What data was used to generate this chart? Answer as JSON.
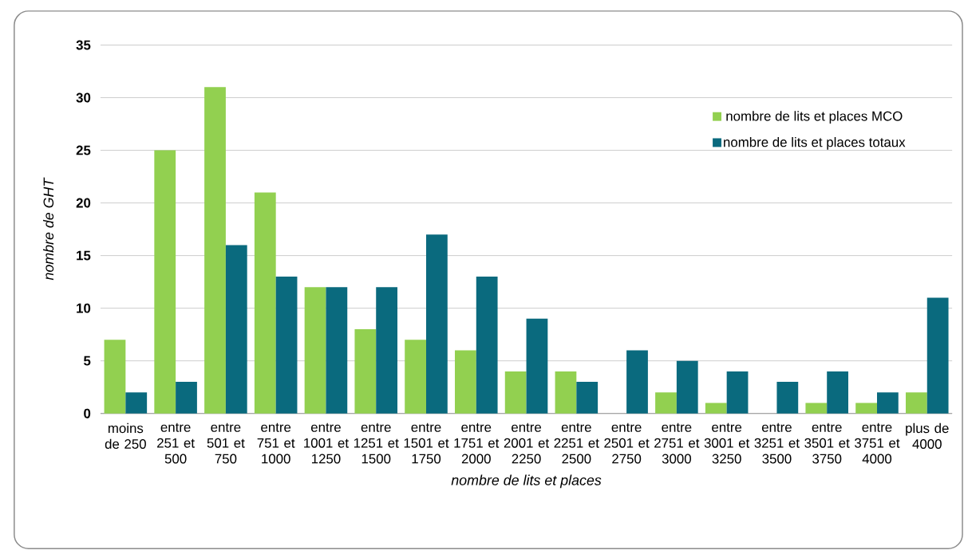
{
  "chart_data": {
    "type": "bar",
    "xlabel": "nombre de lits et places",
    "ylabel": "nombre de GHT",
    "categories": [
      "moins de 250",
      "entre 251 et 500",
      "entre 501 et 750",
      "entre 751 et 1000",
      "entre 1001 et 1250",
      "entre 1251 et 1500",
      "entre 1501 et 1750",
      "entre 1751 et 2000",
      "entre 2001 et 2250",
      "entre 2251 et 2500",
      "entre 2501 et 2750",
      "entre 2751 et 3000",
      "entre 3001 et 3250",
      "entre 3251 et 3500",
      "entre 3501 et 3750",
      "entre 3751 et 4000",
      "plus de 4000"
    ],
    "series": [
      {
        "name": "nombre de lits et places MCO",
        "color": "#92d050",
        "values": [
          7,
          25,
          31,
          21,
          12,
          8,
          7,
          6,
          4,
          4,
          0,
          2,
          1,
          0,
          1,
          1,
          2
        ]
      },
      {
        "name": "nombre de lits et places totaux",
        "color": "#0a6a7e",
        "values": [
          2,
          3,
          16,
          13,
          12,
          12,
          17,
          13,
          9,
          3,
          6,
          5,
          4,
          3,
          4,
          2,
          11
        ]
      }
    ],
    "ylim": [
      0,
      35
    ],
    "yticks": [
      0,
      5,
      10,
      15,
      20,
      25,
      30,
      35
    ],
    "grid": "y",
    "legend": "top right"
  }
}
